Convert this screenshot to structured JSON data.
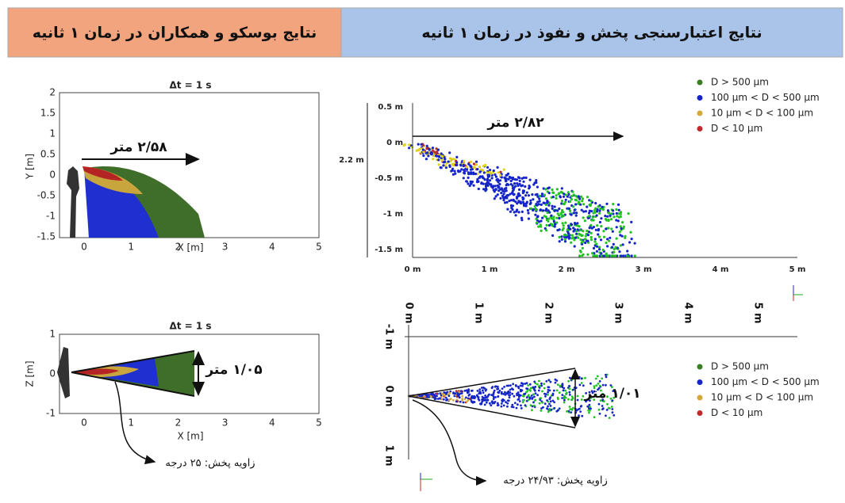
{
  "headers": {
    "right": "نتایج اعتبارسنجی پخش و نفوذ در زمان ۱ ثانیه",
    "left": "نتایج بوسکو و همکاران در زمان ۱ ثانیه"
  },
  "bosco_top": {
    "title": "Δt = 1 s",
    "yticks": [
      "2",
      "1.5",
      "1",
      "0.5",
      "0",
      "-0.5",
      "-1",
      "-1.5"
    ],
    "xticks": [
      "0",
      "1",
      "2",
      "3",
      "4",
      "5"
    ],
    "xlabel": "X [m]",
    "ylabel": "Y [m]",
    "annotation": "۲/۵۸ متر"
  },
  "bosco_bottom": {
    "title": "Δt = 1 s",
    "yticks": [
      "1",
      "0",
      "-1"
    ],
    "xticks": [
      "0",
      "1",
      "2",
      "3",
      "4",
      "5"
    ],
    "xlabel": "X [m]",
    "ylabel": "Z [m]",
    "annotation": "۱/۰۵ متر",
    "angle_note": "زاویه پخش: ۲۵ درجه"
  },
  "sim_top": {
    "yticks": [
      "0.5 m",
      "0 m",
      "-0.5 m",
      "-1 m",
      "-1.5 m"
    ],
    "xticks": [
      "0 m",
      "1 m",
      "2 m",
      "3 m",
      "4 m",
      "5 m"
    ],
    "height_label": "2.2 m",
    "annotation": "۲/۸۲ متر",
    "legend": [
      {
        "label": "D > 500 μm",
        "color": "#3a7d22"
      },
      {
        "label": "100 μm < D < 500 μm",
        "color": "#1525c8"
      },
      {
        "label": "10   μm < D < 100 μm",
        "color": "#d4a93a"
      },
      {
        "label": "D < 10 μm",
        "color": "#c0282a"
      }
    ]
  },
  "sim_bottom": {
    "xticks": [
      "0 m",
      "1 m",
      "2 m",
      "3 m",
      "4 m",
      "5 m"
    ],
    "yticks": [
      "-1 m",
      "0 m",
      "1 m"
    ],
    "annotation": "۱/۰۱ متر",
    "angle_note": "زاویه پخش: ۲۴/۹۳ درجه",
    "legend": [
      {
        "label": "D > 500 μm",
        "color": "#3a7d22"
      },
      {
        "label": "100 μm < D < 500 μm",
        "color": "#1525c8"
      },
      {
        "label": "10   μm < D < 100 μm",
        "color": "#d4a93a"
      },
      {
        "label": "D < 10 μm",
        "color": "#c0282a"
      }
    ]
  }
}
